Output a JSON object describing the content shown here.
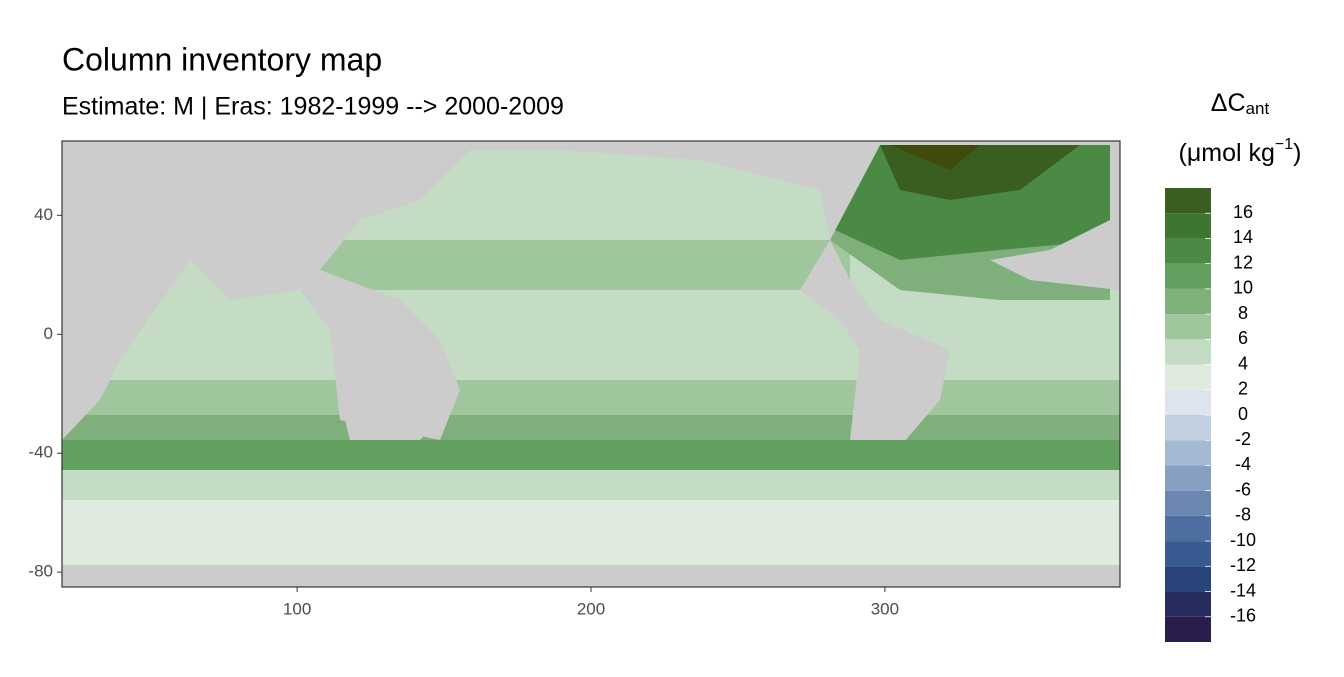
{
  "chart_data": {
    "type": "map",
    "title": "Column inventory map",
    "subtitle": "Estimate: M  | Eras: 1982-1999 --> 2000-2009",
    "legend_title": {
      "symbol": "ΔC",
      "subscript": "ant",
      "unit": "(μmol kg",
      "superscript": "−1",
      "unit_end": ")"
    },
    "xlim": [
      20,
      380
    ],
    "ylim": [
      -85,
      65
    ],
    "xticks": [
      100,
      200,
      300
    ],
    "yticks": [
      -80,
      -40,
      0,
      40
    ],
    "land_color": "#cccccc",
    "colorbar": {
      "bins": [
        -18,
        -16,
        -14,
        -12,
        -10,
        -8,
        -6,
        -4,
        -2,
        0,
        2,
        4,
        6,
        8,
        10,
        12,
        14,
        16,
        18
      ],
      "colors": [
        "#2a1d4d",
        "#272c5e",
        "#284478",
        "#375a91",
        "#4f6ea0",
        "#6a87b1",
        "#87a0c2",
        "#a6b9d3",
        "#c2cfe0",
        "#dde4ee",
        "#e0ebe0",
        "#c4dcc3",
        "#a0c69d",
        "#7fb07c",
        "#62a060",
        "#4a8a45",
        "#3e7530",
        "#3a5e1f"
      ],
      "ticks": [
        -16,
        -14,
        -12,
        -10,
        -8,
        -6,
        -4,
        -2,
        0,
        2,
        4,
        6,
        8,
        10,
        12,
        14,
        16
      ]
    }
  }
}
